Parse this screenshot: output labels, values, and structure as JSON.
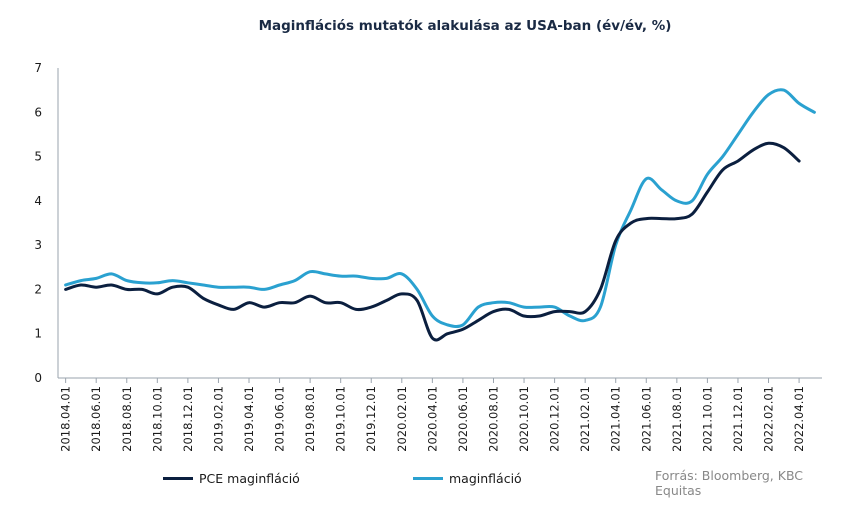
{
  "chart_data": {
    "type": "line",
    "title": "Maginflációs mutatók alakulása az USA-ban (év/év, %)",
    "xlabel": "",
    "ylabel": "",
    "ylim": [
      0,
      7
    ],
    "yticks": [
      0,
      1,
      2,
      3,
      4,
      5,
      6,
      7
    ],
    "grid": false,
    "legend_position": "bottom",
    "source": "Forrás: Bloomberg,  KBC Equitas",
    "x": [
      "2018.04.01",
      "2018.05.01",
      "2018.06.01",
      "2018.07.01",
      "2018.08.01",
      "2018.09.01",
      "2018.10.01",
      "2018.11.01",
      "2018.12.01",
      "2019.01.01",
      "2019.02.01",
      "2019.03.01",
      "2019.04.01",
      "2019.05.01",
      "2019.06.01",
      "2019.07.01",
      "2019.08.01",
      "2019.09.01",
      "2019.10.01",
      "2019.11.01",
      "2019.12.01",
      "2020.01.01",
      "2020.02.01",
      "2020.03.01",
      "2020.04.01",
      "2020.05.01",
      "2020.06.01",
      "2020.07.01",
      "2020.08.01",
      "2020.09.01",
      "2020.10.01",
      "2020.11.01",
      "2020.12.01",
      "2021.01.01",
      "2021.02.01",
      "2021.03.01",
      "2021.04.01",
      "2021.05.01",
      "2021.06.01",
      "2021.07.01",
      "2021.08.01",
      "2021.09.01",
      "2021.10.01",
      "2021.11.01",
      "2021.12.01",
      "2022.01.01",
      "2022.02.01",
      "2022.03.01",
      "2022.04.01",
      "2022.05.01"
    ],
    "x_tick_labels": [
      "2018.04.01",
      "2018.06.01",
      "2018.08.01",
      "2018.10.01",
      "2018.12.01",
      "2019.02.01",
      "2019.04.01",
      "2019.06.01",
      "2019.08.01",
      "2019.10.01",
      "2019.12.01",
      "2020.02.01",
      "2020.04.01",
      "2020.06.01",
      "2020.08.01",
      "2020.10.01",
      "2020.12.01",
      "2021.02.01",
      "2021.04.01",
      "2021.06.01",
      "2021.08.01",
      "2021.10.01",
      "2021.12.01",
      "2022.02.01",
      "2022.04.01"
    ],
    "series": [
      {
        "name": "PCE maginfláció",
        "color": "#0b1f3f",
        "values": [
          2.0,
          2.1,
          2.05,
          2.1,
          2.0,
          2.0,
          1.9,
          2.05,
          2.05,
          1.8,
          1.65,
          1.55,
          1.7,
          1.6,
          1.7,
          1.7,
          1.85,
          1.7,
          1.7,
          1.55,
          1.6,
          1.75,
          1.9,
          1.75,
          0.9,
          1.0,
          1.1,
          1.3,
          1.5,
          1.55,
          1.4,
          1.4,
          1.5,
          1.5,
          1.5,
          2.0,
          3.1,
          3.5,
          3.6,
          3.6,
          3.6,
          3.7,
          4.2,
          4.7,
          4.9,
          5.15,
          5.3,
          5.2,
          4.9,
          null
        ]
      },
      {
        "name": "maginfláció",
        "color": "#2aa1d0",
        "values": [
          2.1,
          2.2,
          2.25,
          2.35,
          2.2,
          2.15,
          2.15,
          2.2,
          2.15,
          2.1,
          2.05,
          2.05,
          2.05,
          2.0,
          2.1,
          2.2,
          2.4,
          2.35,
          2.3,
          2.3,
          2.25,
          2.25,
          2.35,
          2.0,
          1.4,
          1.2,
          1.2,
          1.6,
          1.7,
          1.7,
          1.6,
          1.6,
          1.6,
          1.4,
          1.3,
          1.6,
          3.0,
          3.8,
          4.5,
          4.25,
          4.0,
          4.0,
          4.6,
          5.0,
          5.5,
          6.0,
          6.4,
          6.5,
          6.2,
          6.0
        ]
      }
    ]
  }
}
